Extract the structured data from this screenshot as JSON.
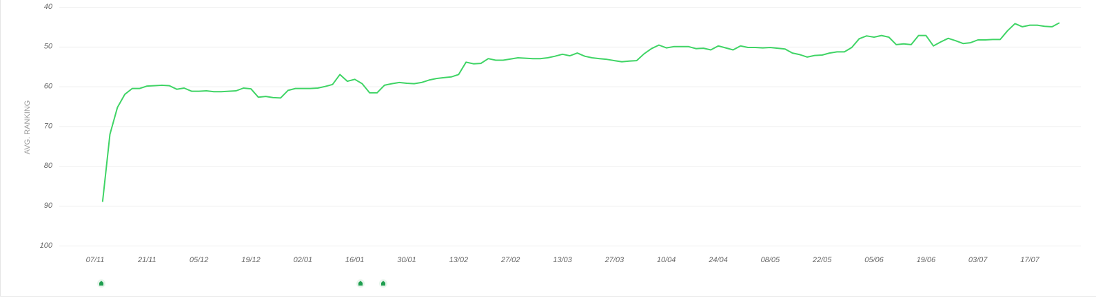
{
  "chart_data": {
    "type": "line",
    "y_label": "AVG. RANKING",
    "categories": [
      "07/11",
      null,
      null,
      null,
      null,
      null,
      null,
      "21/11",
      null,
      null,
      null,
      null,
      null,
      null,
      "05/12",
      null,
      null,
      null,
      null,
      null,
      null,
      "19/12",
      null,
      null,
      null,
      null,
      null,
      null,
      "02/01",
      null,
      null,
      null,
      null,
      null,
      null,
      "16/01",
      null,
      null,
      null,
      null,
      null,
      null,
      "30/01",
      null,
      null,
      null,
      null,
      null,
      null,
      "13/02",
      null,
      null,
      null,
      null,
      null,
      null,
      "27/02",
      null,
      null,
      null,
      null,
      null,
      null,
      "13/03",
      null,
      null,
      null,
      null,
      null,
      null,
      "27/03",
      null,
      null,
      null,
      null,
      null,
      null,
      "10/04",
      null,
      null,
      null,
      null,
      null,
      null,
      "24/04",
      null,
      null,
      null,
      null,
      null,
      null,
      "08/05",
      null,
      null,
      null,
      null,
      null,
      null,
      "22/05",
      null,
      null,
      null,
      null,
      null,
      null,
      "05/06",
      null,
      null,
      null,
      null,
      null,
      null,
      "19/06",
      null,
      null,
      null,
      null,
      null,
      null,
      "03/07",
      null,
      null,
      null,
      null,
      null,
      null,
      "17/07",
      null,
      null,
      null,
      null
    ],
    "series": [
      {
        "name": "AVG. RANKING",
        "color": "#3fd465",
        "values": [
          null,
          89,
          72,
          65.3,
          62,
          60.5,
          60.5,
          59.9,
          59.8,
          59.7,
          59.8,
          60.7,
          60.4,
          61.2,
          61.2,
          61.1,
          61.3,
          61.3,
          61.2,
          61.1,
          60.4,
          60.6,
          62.7,
          62.5,
          62.8,
          62.9,
          61.0,
          60.5,
          60.5,
          60.5,
          60.4,
          60.0,
          59.5,
          57.0,
          58.7,
          58.2,
          59.3,
          61.6,
          61.6,
          59.7,
          59.3,
          59.0,
          59.2,
          59.3,
          59.0,
          58.4,
          58.0,
          57.8,
          57.6,
          57.0,
          53.9,
          54.3,
          54.2,
          53.0,
          53.4,
          53.4,
          53.1,
          52.8,
          52.9,
          53.0,
          53.0,
          52.8,
          52.4,
          51.9,
          52.3,
          51.6,
          52.4,
          52.8,
          53.0,
          53.2,
          53.5,
          53.8,
          53.6,
          53.5,
          51.8,
          50.5,
          49.6,
          50.3,
          50.0,
          50.0,
          50.0,
          50.5,
          50.4,
          50.8,
          49.8,
          50.3,
          50.8,
          49.8,
          50.2,
          50.2,
          50.3,
          50.2,
          50.4,
          50.6,
          51.6,
          52.0,
          52.6,
          52.2,
          52.1,
          51.6,
          51.3,
          51.3,
          50.2,
          48.0,
          47.3,
          47.6,
          47.2,
          47.6,
          49.5,
          49.3,
          49.5,
          47.2,
          47.2,
          49.8,
          48.8,
          47.9,
          48.5,
          49.2,
          49.0,
          48.3,
          48.3,
          48.2,
          48.2,
          46.0,
          44.2,
          45.0,
          44.6,
          44.6,
          44.9,
          45.0,
          44.0
        ]
      }
    ],
    "ylim": [
      100,
      40
    ],
    "yticks": [
      40,
      50,
      60,
      70,
      80,
      90,
      100
    ],
    "grid": true
  }
}
